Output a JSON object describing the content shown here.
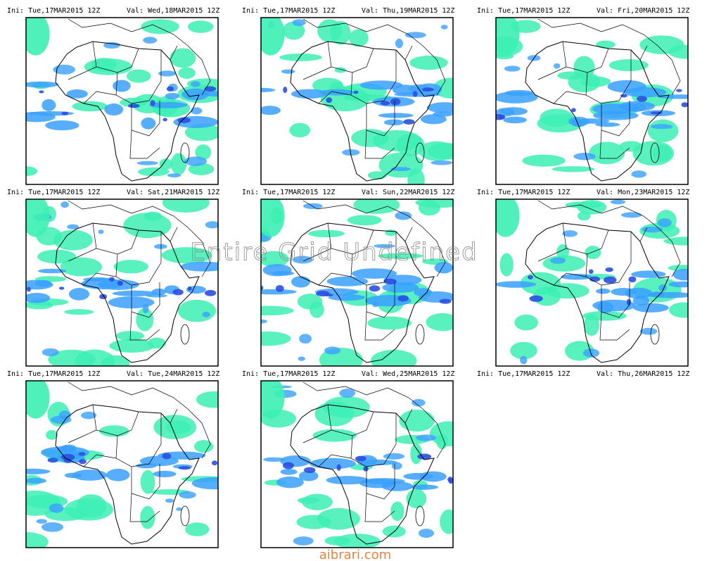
{
  "panels": [
    {
      "ini": "Ini: Tue,17MAR2015 12Z",
      "val": "Val: Wed,18MAR2015 12Z"
    },
    {
      "ini": "Ini: Tue,17MAR2015 12Z",
      "val": "Val: Thu,19MAR2015 12Z"
    },
    {
      "ini": "Ini: Tue,17MAR2015 12Z",
      "val": "Val: Fri,20MAR2015 12Z"
    },
    {
      "ini": "Ini: Tue,17MAR2015 12Z",
      "val": "Val: Sat,21MAR2015 12Z"
    },
    {
      "ini": "Ini: Tue,17MAR2015 12Z",
      "val": "Val: Sun,22MAR2015 12Z"
    },
    {
      "ini": "Ini: Tue,17MAR2015 12Z",
      "val": "Val: Mon,23MAR2015 12Z"
    },
    {
      "ini": "Ini: Tue,17MAR2015 12Z",
      "val": "Val: Tue,24MAR2015 12Z"
    },
    {
      "ini": "Ini: Tue,17MAR2015 12Z",
      "val": "Val: Wed,25MAR2015 12Z"
    },
    {
      "ini": "Ini: Tue,17MAR2015 12Z",
      "val": "Val: Thu,26MAR2015 12Z",
      "note": "Entire Grid Undefined"
    }
  ],
  "watermark": "aibrari.com"
}
